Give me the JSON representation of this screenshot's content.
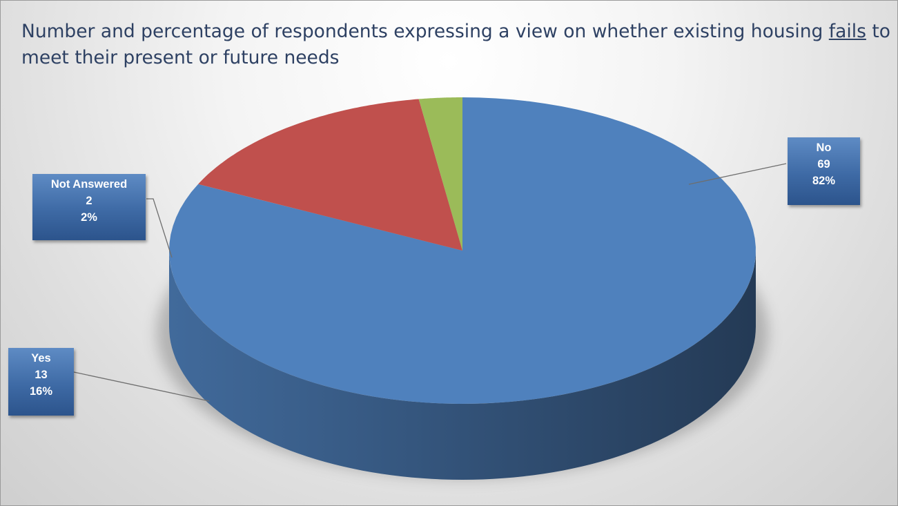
{
  "chart_data": {
    "type": "pie",
    "title_parts": [
      "Number and percentage of respondents expressing a view on whether existing housing ",
      "fails",
      " to meet their present or future needs"
    ],
    "slices": [
      {
        "label": "No",
        "value": 69,
        "percent": "82%",
        "color": "#4f81bd"
      },
      {
        "label": "Yes",
        "value": 13,
        "percent": "16%",
        "color": "#c0504d"
      },
      {
        "label": "Not Answered",
        "value": 2,
        "percent": "2%",
        "color": "#9bbb59"
      }
    ]
  }
}
